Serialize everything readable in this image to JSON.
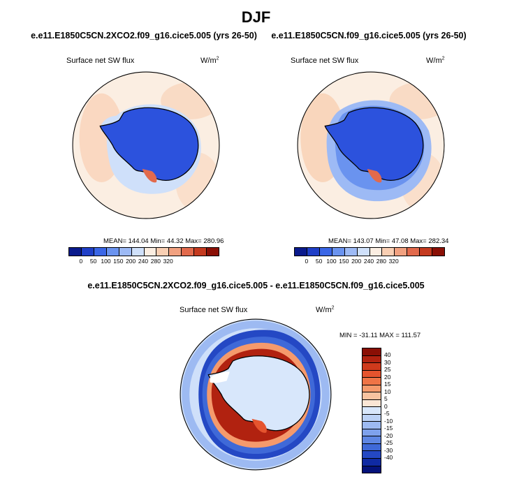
{
  "season_title": "DJF",
  "panels": [
    {
      "case_title": "e.e11.E1850C5CN.2XCO2.f09_g16.cice5.005 (yrs 26-50)",
      "variable": "Surface net SW flux",
      "units_base": "W/m",
      "units_exp": "2",
      "stats": "MEAN= 144.04  Min=  44.32  Max= 280.96"
    },
    {
      "case_title": "e.e11.E1850C5CN.f09_g16.cice5.005 (yrs 26-50)",
      "variable": "Surface net SW flux",
      "units_base": "W/m",
      "units_exp": "2",
      "stats": "MEAN= 143.07  Min=  47.08  Max= 282.34"
    }
  ],
  "diff_panel": {
    "case_title": "e.e11.E1850C5CN.2XCO2.f09_g16.cice5.005 - e.e11.E1850C5CN.f09_g16.cice5.005",
    "variable": "Surface net SW flux",
    "units_base": "W/m",
    "units_exp": "2",
    "stats": "MIN = -31.11  MAX = 111.57"
  },
  "abs_colorbar": {
    "colors": [
      "#0a1a8c",
      "#1f3fc7",
      "#3a66e6",
      "#6a93ef",
      "#9dbaf5",
      "#cfe0fa",
      "#fbeee2",
      "#f9cfb3",
      "#f1a180",
      "#e26a4c",
      "#c43a1f",
      "#8a0f05"
    ],
    "tick_labels": [
      "0",
      "50",
      "100",
      "150",
      "200",
      "240",
      "280",
      "320"
    ]
  },
  "diff_colorbar": {
    "colors": [
      "#8a0f05",
      "#b12210",
      "#cf3a1c",
      "#e5542e",
      "#ef7446",
      "#f59a6c",
      "#f8c3a0",
      "#fbe6d5",
      "#d8e7fb",
      "#bcd2f6",
      "#9dbaf2",
      "#7ea1ec",
      "#5e86e3",
      "#3f69d8",
      "#2448c4",
      "#0f2aa3",
      "#04127a"
    ],
    "tick_labels": [
      "40",
      "30",
      "25",
      "20",
      "15",
      "10",
      "5",
      "0",
      "-5",
      "-10",
      "-15",
      "-20",
      "-25",
      "-30",
      "-40"
    ]
  }
}
